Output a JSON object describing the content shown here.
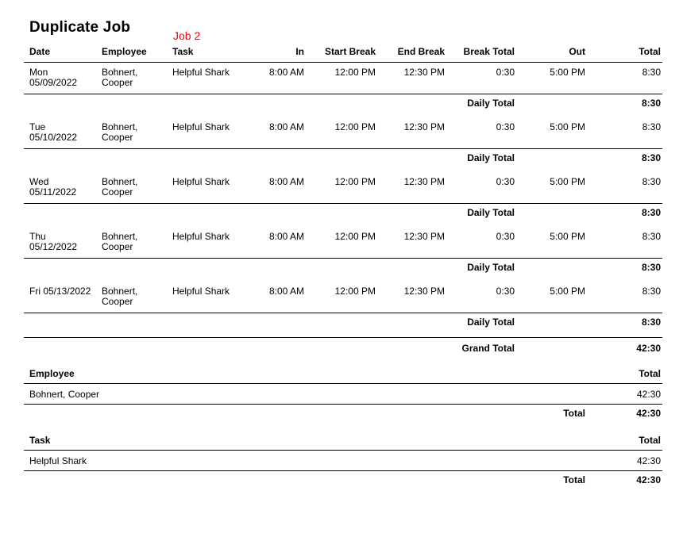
{
  "report": {
    "title": "Duplicate Job",
    "job_label": "Job 2",
    "accent_color": "#ff0000",
    "text_color": "#000000",
    "background_color": "#ffffff"
  },
  "table": {
    "columns": [
      "Date",
      "Employee",
      "Task",
      "In",
      "Start Break",
      "End Break",
      "Break Total",
      "Out",
      "Total"
    ],
    "daily_total_label": "Daily Total",
    "grand_total_label": "Grand Total",
    "grand_total_value": "42:30",
    "days": [
      {
        "date": "Mon\n05/09/2022",
        "employee": "Bohnert,\nCooper",
        "task": "Helpful Shark",
        "in": "8:00 AM",
        "start_break": "12:00 PM",
        "end_break": "12:30 PM",
        "break_total": "0:30",
        "out": "5:00 PM",
        "total": "8:30",
        "daily_total": "8:30"
      },
      {
        "date": "Tue\n05/10/2022",
        "employee": "Bohnert,\nCooper",
        "task": "Helpful Shark",
        "in": "8:00 AM",
        "start_break": "12:00 PM",
        "end_break": "12:30 PM",
        "break_total": "0:30",
        "out": "5:00 PM",
        "total": "8:30",
        "daily_total": "8:30"
      },
      {
        "date": "Wed\n05/11/2022",
        "employee": "Bohnert,\nCooper",
        "task": "Helpful Shark",
        "in": "8:00 AM",
        "start_break": "12:00 PM",
        "end_break": "12:30 PM",
        "break_total": "0:30",
        "out": "5:00 PM",
        "total": "8:30",
        "daily_total": "8:30"
      },
      {
        "date": "Thu\n05/12/2022",
        "employee": "Bohnert,\nCooper",
        "task": "Helpful Shark",
        "in": "8:00 AM",
        "start_break": "12:00 PM",
        "end_break": "12:30 PM",
        "break_total": "0:30",
        "out": "5:00 PM",
        "total": "8:30",
        "daily_total": "8:30"
      },
      {
        "date": "Fri 05/13/2022",
        "employee": "Bohnert,\nCooper",
        "task": "Helpful Shark",
        "in": "8:00 AM",
        "start_break": "12:00 PM",
        "end_break": "12:30 PM",
        "break_total": "0:30",
        "out": "5:00 PM",
        "total": "8:30",
        "daily_total": "8:30"
      }
    ]
  },
  "employee_summary": {
    "header_label": "Employee",
    "header_total": "Total",
    "row_name": "Bohnert, Cooper",
    "row_total": "42:30",
    "total_label": "Total",
    "total_value": "42:30"
  },
  "task_summary": {
    "header_label": "Task",
    "header_total": "Total",
    "row_name": "Helpful Shark",
    "row_total": "42:30",
    "total_label": "Total",
    "total_value": "42:30"
  }
}
